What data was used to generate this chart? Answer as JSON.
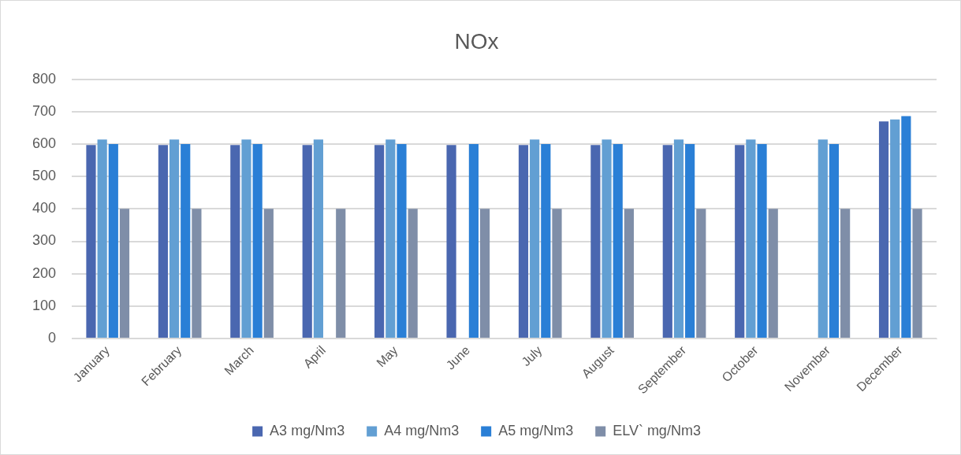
{
  "chart_data": {
    "type": "bar",
    "title": "NOx",
    "categories": [
      "January",
      "February",
      "March",
      "April",
      "May",
      "June",
      "July",
      "August",
      "September",
      "October",
      "November",
      "December"
    ],
    "series": [
      {
        "name": "A3 mg/Nm3",
        "color": "#4a67b0",
        "values": [
          597,
          597,
          597,
          597,
          597,
          597,
          597,
          597,
          597,
          597,
          null,
          670
        ]
      },
      {
        "name": "A4 mg/Nm3",
        "color": "#629fd3",
        "values": [
          614,
          614,
          614,
          614,
          614,
          null,
          614,
          614,
          614,
          614,
          614,
          676
        ]
      },
      {
        "name": "A5 mg/Nm3",
        "color": "#2a7fd6",
        "values": [
          600,
          600,
          600,
          null,
          600,
          600,
          600,
          600,
          600,
          600,
          600,
          686
        ]
      },
      {
        "name": "ELV` mg/Nm3",
        "color": "#7f8ea8",
        "values": [
          400,
          400,
          400,
          400,
          400,
          400,
          400,
          400,
          400,
          400,
          400,
          400
        ]
      }
    ],
    "ylim": [
      0,
      800
    ],
    "yticks": [
      0,
      100,
      200,
      300,
      400,
      500,
      600,
      700,
      800
    ],
    "grid": "y",
    "legend": "bottom"
  }
}
